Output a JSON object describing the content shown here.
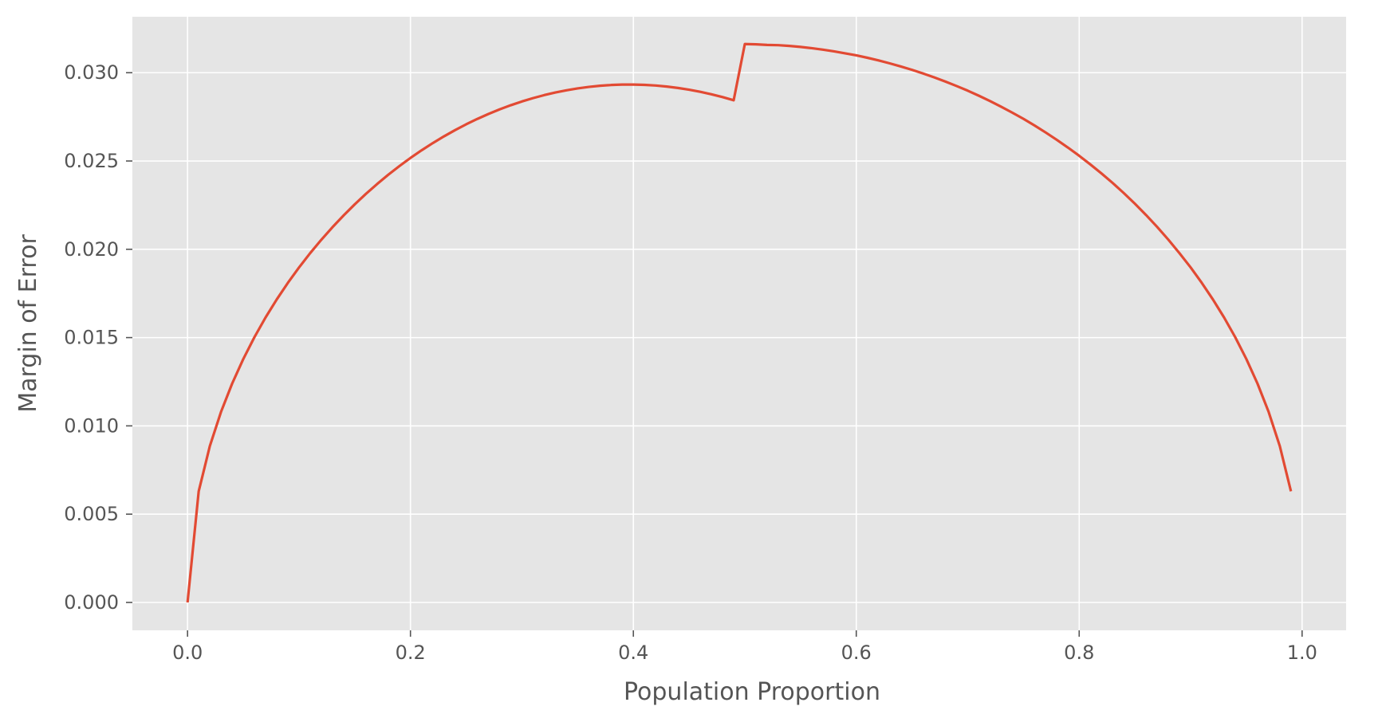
{
  "chart_data": {
    "type": "line",
    "title": "",
    "xlabel": "Population Proportion",
    "ylabel": "Margin of Error",
    "xlim": [
      -0.0495,
      1.0395
    ],
    "ylim": [
      -0.00158,
      0.03317
    ],
    "xticks": [
      0.0,
      0.2,
      0.4,
      0.6,
      0.8,
      1.0
    ],
    "xtick_labels": [
      "0.0",
      "0.2",
      "0.4",
      "0.6",
      "0.8",
      "1.0"
    ],
    "yticks": [
      0.0,
      0.005,
      0.01,
      0.015,
      0.02,
      0.025,
      0.03
    ],
    "ytick_labels": [
      "0.000",
      "0.005",
      "0.010",
      "0.015",
      "0.020",
      "0.025",
      "0.030"
    ],
    "grid": true,
    "background": "#e5e5e5",
    "grid_color": "#ffffff",
    "series": [
      {
        "color": "#e24a33",
        "x": [
          0,
          0.01,
          0.02,
          0.03,
          0.04,
          0.05,
          0.06,
          0.07,
          0.08,
          0.09,
          0.1,
          0.11,
          0.12,
          0.13,
          0.14,
          0.15,
          0.16,
          0.17,
          0.18,
          0.19,
          0.2,
          0.21,
          0.22,
          0.23,
          0.24,
          0.25,
          0.26,
          0.27,
          0.28,
          0.29,
          0.3,
          0.31,
          0.32,
          0.33,
          0.34,
          0.35,
          0.36,
          0.37,
          0.38,
          0.39,
          0.4,
          0.41,
          0.42,
          0.43,
          0.44,
          0.45,
          0.46,
          0.47,
          0.48,
          0.49,
          0.5,
          0.51,
          0.52,
          0.53,
          0.54,
          0.55,
          0.56,
          0.57,
          0.58,
          0.59,
          0.6,
          0.61,
          0.62,
          0.63,
          0.64,
          0.65,
          0.66,
          0.67,
          0.68,
          0.69,
          0.7,
          0.71,
          0.72,
          0.73,
          0.74,
          0.75,
          0.76,
          0.77,
          0.78,
          0.79,
          0.8,
          0.81,
          0.82,
          0.83,
          0.84,
          0.85,
          0.86,
          0.87,
          0.88,
          0.89,
          0.9,
          0.91,
          0.92,
          0.93,
          0.94,
          0.95,
          0.96,
          0.97,
          0.98,
          0.99
        ],
        "y": [
          0,
          0.006293,
          0.008854,
          0.010788,
          0.012394,
          0.013784,
          0.015021,
          0.016138,
          0.017158,
          0.018098,
          0.018969,
          0.019781,
          0.020539,
          0.02125,
          0.021917,
          0.022545,
          0.023136,
          0.023692,
          0.024216,
          0.024709,
          0.025171,
          0.025606,
          0.026013,
          0.026393,
          0.026748,
          0.027078,
          0.027383,
          0.027665,
          0.027923,
          0.028158,
          0.028371,
          0.028562,
          0.028731,
          0.028879,
          0.029006,
          0.029111,
          0.029196,
          0.02926,
          0.029304,
          0.029327,
          0.02933,
          0.029312,
          0.029274,
          0.029215,
          0.029136,
          0.029037,
          0.028918,
          0.028779,
          0.028619,
          0.02844,
          0.031623,
          0.031607,
          0.031572,
          0.03156,
          0.031517,
          0.03146,
          0.03139,
          0.031306,
          0.031209,
          0.031098,
          0.030984,
          0.030846,
          0.030695,
          0.03053,
          0.030353,
          0.030163,
          0.029956,
          0.029734,
          0.029499,
          0.029247,
          0.028983,
          0.028697,
          0.028395,
          0.028074,
          0.027738,
          0.027386,
          0.027009,
          0.026612,
          0.026196,
          0.025757,
          0.025296,
          0.024807,
          0.024296,
          0.023757,
          0.023185,
          0.022581,
          0.02194,
          0.021263,
          0.020545,
          0.019778,
          0.018974,
          0.018098,
          0.017158,
          0.016138,
          0.015021,
          0.013784,
          0.012394,
          0.010788,
          0.008854,
          0.006293
        ]
      }
    ]
  }
}
